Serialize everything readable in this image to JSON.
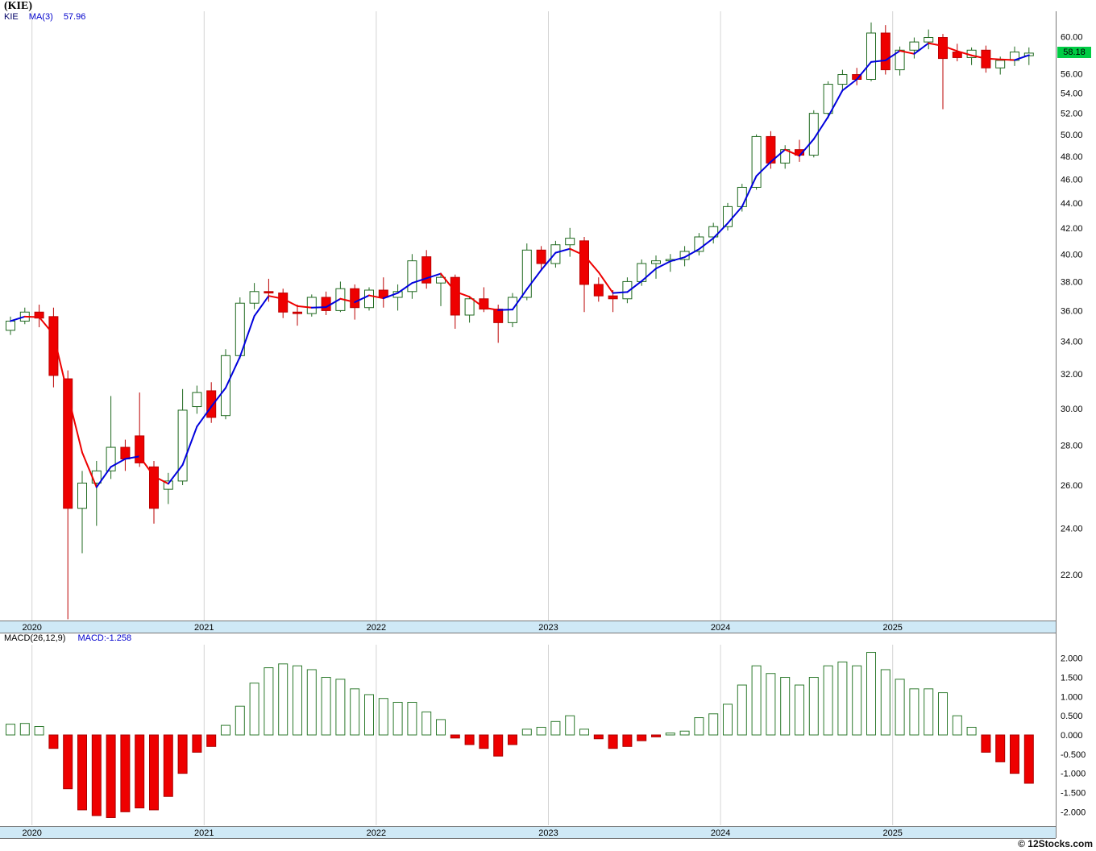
{
  "header": {
    "title": "(KIE)"
  },
  "price_panel": {
    "legend": {
      "symbol": "KIE",
      "ma_label": "MA(3)",
      "ma_value": "57.96"
    },
    "last_price_label": "58.18"
  },
  "macd_panel": {
    "legend": {
      "label": "MACD(26,12,9)",
      "value": "MACD:-1.258"
    }
  },
  "footer": {
    "watermark": "© 12Stocks.com"
  },
  "colors": {
    "up_fill": "#ffffff",
    "up_stroke": "#1f691f",
    "down_fill": "#ee0000",
    "down_stroke": "#bb0000",
    "ma_rising": "#0000dd",
    "ma_falling": "#ee0000",
    "hist_pos_fill": "#ffffff",
    "hist_pos_stroke": "#2d7a2d",
    "hist_neg_fill": "#ee0000",
    "hist_neg_stroke": "#aa0000",
    "axis_strip_bg": "#cfe9f6",
    "grid_line": "#d4d4d4",
    "border": "#777777",
    "text": "#000000",
    "price_tag_bg": "#00cc44"
  },
  "chart_data": {
    "type": "candlestick",
    "symbol": "KIE",
    "frequency": "monthly",
    "start_month": "2019-11",
    "end_month": "2025-10",
    "price_axis": {
      "scale": "log",
      "tick_min": 22,
      "tick_max": 60,
      "tick_step": 2,
      "render_min": 20.2,
      "render_max": 62.9
    },
    "x_axis": {
      "years": [
        "2020",
        "2021",
        "2022",
        "2023",
        "2024",
        "2025"
      ],
      "jan_indices": [
        2,
        14,
        26,
        38,
        50,
        62
      ]
    },
    "overlay_ma": {
      "period": 3,
      "last_value": 57.96,
      "style": "blue when rising, red when falling"
    },
    "candles_format": [
      "open",
      "high",
      "low",
      "close"
    ],
    "candles": [
      [
        34.7,
        35.6,
        34.4,
        35.3
      ],
      [
        35.3,
        36.2,
        35.1,
        35.9
      ],
      [
        35.9,
        36.4,
        34.9,
        35.5
      ],
      [
        35.6,
        36.2,
        31.2,
        31.9
      ],
      [
        31.7,
        32.2,
        20.25,
        24.9
      ],
      [
        24.9,
        26.7,
        22.9,
        26.1
      ],
      [
        26.1,
        27.2,
        24.1,
        26.7
      ],
      [
        26.7,
        30.7,
        26.3,
        27.9
      ],
      [
        27.9,
        28.3,
        26.7,
        27.3
      ],
      [
        28.5,
        30.9,
        26.9,
        27.1
      ],
      [
        26.9,
        27.2,
        24.2,
        24.9
      ],
      [
        25.8,
        26.6,
        25.1,
        26.2
      ],
      [
        26.2,
        31.1,
        26.0,
        29.9
      ],
      [
        30.1,
        31.3,
        29.7,
        30.9
      ],
      [
        31.0,
        31.5,
        29.2,
        29.5
      ],
      [
        29.6,
        33.5,
        29.4,
        33.1
      ],
      [
        33.1,
        36.9,
        32.9,
        36.5
      ],
      [
        36.5,
        37.9,
        36.1,
        37.3
      ],
      [
        37.3,
        38.2,
        36.6,
        37.2
      ],
      [
        37.2,
        37.5,
        35.5,
        35.9
      ],
      [
        35.9,
        36.4,
        35.0,
        35.8
      ],
      [
        35.8,
        37.1,
        35.6,
        36.9
      ],
      [
        36.9,
        37.3,
        35.7,
        36.0
      ],
      [
        36.0,
        38.0,
        35.9,
        37.5
      ],
      [
        37.5,
        37.8,
        35.4,
        36.2
      ],
      [
        36.2,
        37.6,
        36.0,
        37.4
      ],
      [
        37.4,
        38.3,
        36.2,
        36.9
      ],
      [
        36.9,
        37.8,
        36.0,
        37.3
      ],
      [
        37.3,
        40.0,
        36.8,
        39.5
      ],
      [
        39.8,
        40.3,
        37.5,
        37.9
      ],
      [
        37.9,
        38.6,
        36.3,
        38.3
      ],
      [
        38.3,
        38.5,
        34.8,
        35.7
      ],
      [
        35.7,
        37.0,
        35.2,
        36.8
      ],
      [
        36.8,
        37.6,
        35.9,
        36.1
      ],
      [
        36.1,
        36.4,
        33.9,
        35.2
      ],
      [
        35.2,
        37.2,
        34.9,
        36.9
      ],
      [
        36.9,
        40.8,
        36.7,
        40.3
      ],
      [
        40.3,
        40.6,
        38.9,
        39.3
      ],
      [
        39.3,
        41.0,
        39.0,
        40.7
      ],
      [
        40.7,
        42.0,
        39.8,
        41.2
      ],
      [
        41.0,
        41.3,
        35.9,
        37.8
      ],
      [
        37.8,
        38.3,
        36.6,
        37.0
      ],
      [
        37.0,
        37.4,
        35.9,
        36.8
      ],
      [
        36.8,
        38.3,
        36.5,
        38.0
      ],
      [
        38.0,
        39.6,
        37.7,
        39.3
      ],
      [
        39.3,
        39.9,
        38.2,
        39.5
      ],
      [
        39.5,
        40.0,
        38.7,
        39.6
      ],
      [
        39.6,
        40.6,
        39.1,
        40.2
      ],
      [
        40.2,
        41.6,
        39.9,
        41.3
      ],
      [
        41.3,
        42.4,
        40.8,
        42.1
      ],
      [
        42.1,
        44.0,
        41.8,
        43.7
      ],
      [
        43.7,
        45.6,
        43.3,
        45.3
      ],
      [
        45.3,
        50.0,
        45.1,
        49.8
      ],
      [
        49.8,
        50.3,
        46.9,
        47.4
      ],
      [
        47.4,
        49.0,
        46.9,
        48.6
      ],
      [
        48.6,
        49.5,
        47.5,
        48.1
      ],
      [
        48.1,
        52.3,
        47.9,
        52.0
      ],
      [
        52.0,
        55.2,
        51.5,
        54.9
      ],
      [
        54.9,
        56.4,
        54.2,
        55.9
      ],
      [
        55.9,
        56.6,
        54.8,
        55.4
      ],
      [
        55.4,
        61.6,
        55.2,
        60.4
      ],
      [
        60.4,
        61.3,
        55.9,
        56.4
      ],
      [
        56.4,
        58.9,
        55.8,
        58.5
      ],
      [
        58.5,
        59.9,
        57.6,
        59.4
      ],
      [
        59.4,
        60.8,
        58.6,
        59.9
      ],
      [
        59.9,
        60.3,
        52.4,
        57.6
      ],
      [
        58.3,
        59.2,
        57.3,
        57.7
      ],
      [
        57.7,
        58.8,
        56.9,
        58.5
      ],
      [
        58.5,
        59.0,
        56.1,
        56.6
      ],
      [
        56.6,
        57.8,
        55.9,
        57.4
      ],
      [
        57.4,
        58.9,
        56.8,
        58.3
      ],
      [
        57.9,
        58.8,
        56.9,
        58.18
      ]
    ],
    "macd": {
      "params": [
        26,
        12,
        9
      ],
      "last_value": -1.258,
      "axis": {
        "tick_min": -2,
        "tick_max": 2,
        "tick_step": 0.5,
        "render_min": -2.35,
        "render_max": 2.35
      },
      "histogram": [
        0.28,
        0.3,
        0.22,
        -0.35,
        -1.4,
        -1.95,
        -2.1,
        -2.15,
        -2.0,
        -1.9,
        -1.95,
        -1.6,
        -1.0,
        -0.45,
        -0.3,
        0.25,
        0.75,
        1.35,
        1.75,
        1.85,
        1.8,
        1.7,
        1.5,
        1.45,
        1.2,
        1.05,
        0.95,
        0.85,
        0.85,
        0.6,
        0.4,
        -0.08,
        -0.25,
        -0.35,
        -0.55,
        -0.25,
        0.15,
        0.2,
        0.35,
        0.5,
        0.15,
        -0.1,
        -0.35,
        -0.3,
        -0.15,
        -0.05,
        0.05,
        0.1,
        0.45,
        0.55,
        0.8,
        1.3,
        1.8,
        1.6,
        1.5,
        1.3,
        1.5,
        1.8,
        1.9,
        1.8,
        2.15,
        1.7,
        1.45,
        1.2,
        1.2,
        1.1,
        0.5,
        0.2,
        -0.45,
        -0.7,
        -1.0,
        -1.258
      ]
    }
  }
}
